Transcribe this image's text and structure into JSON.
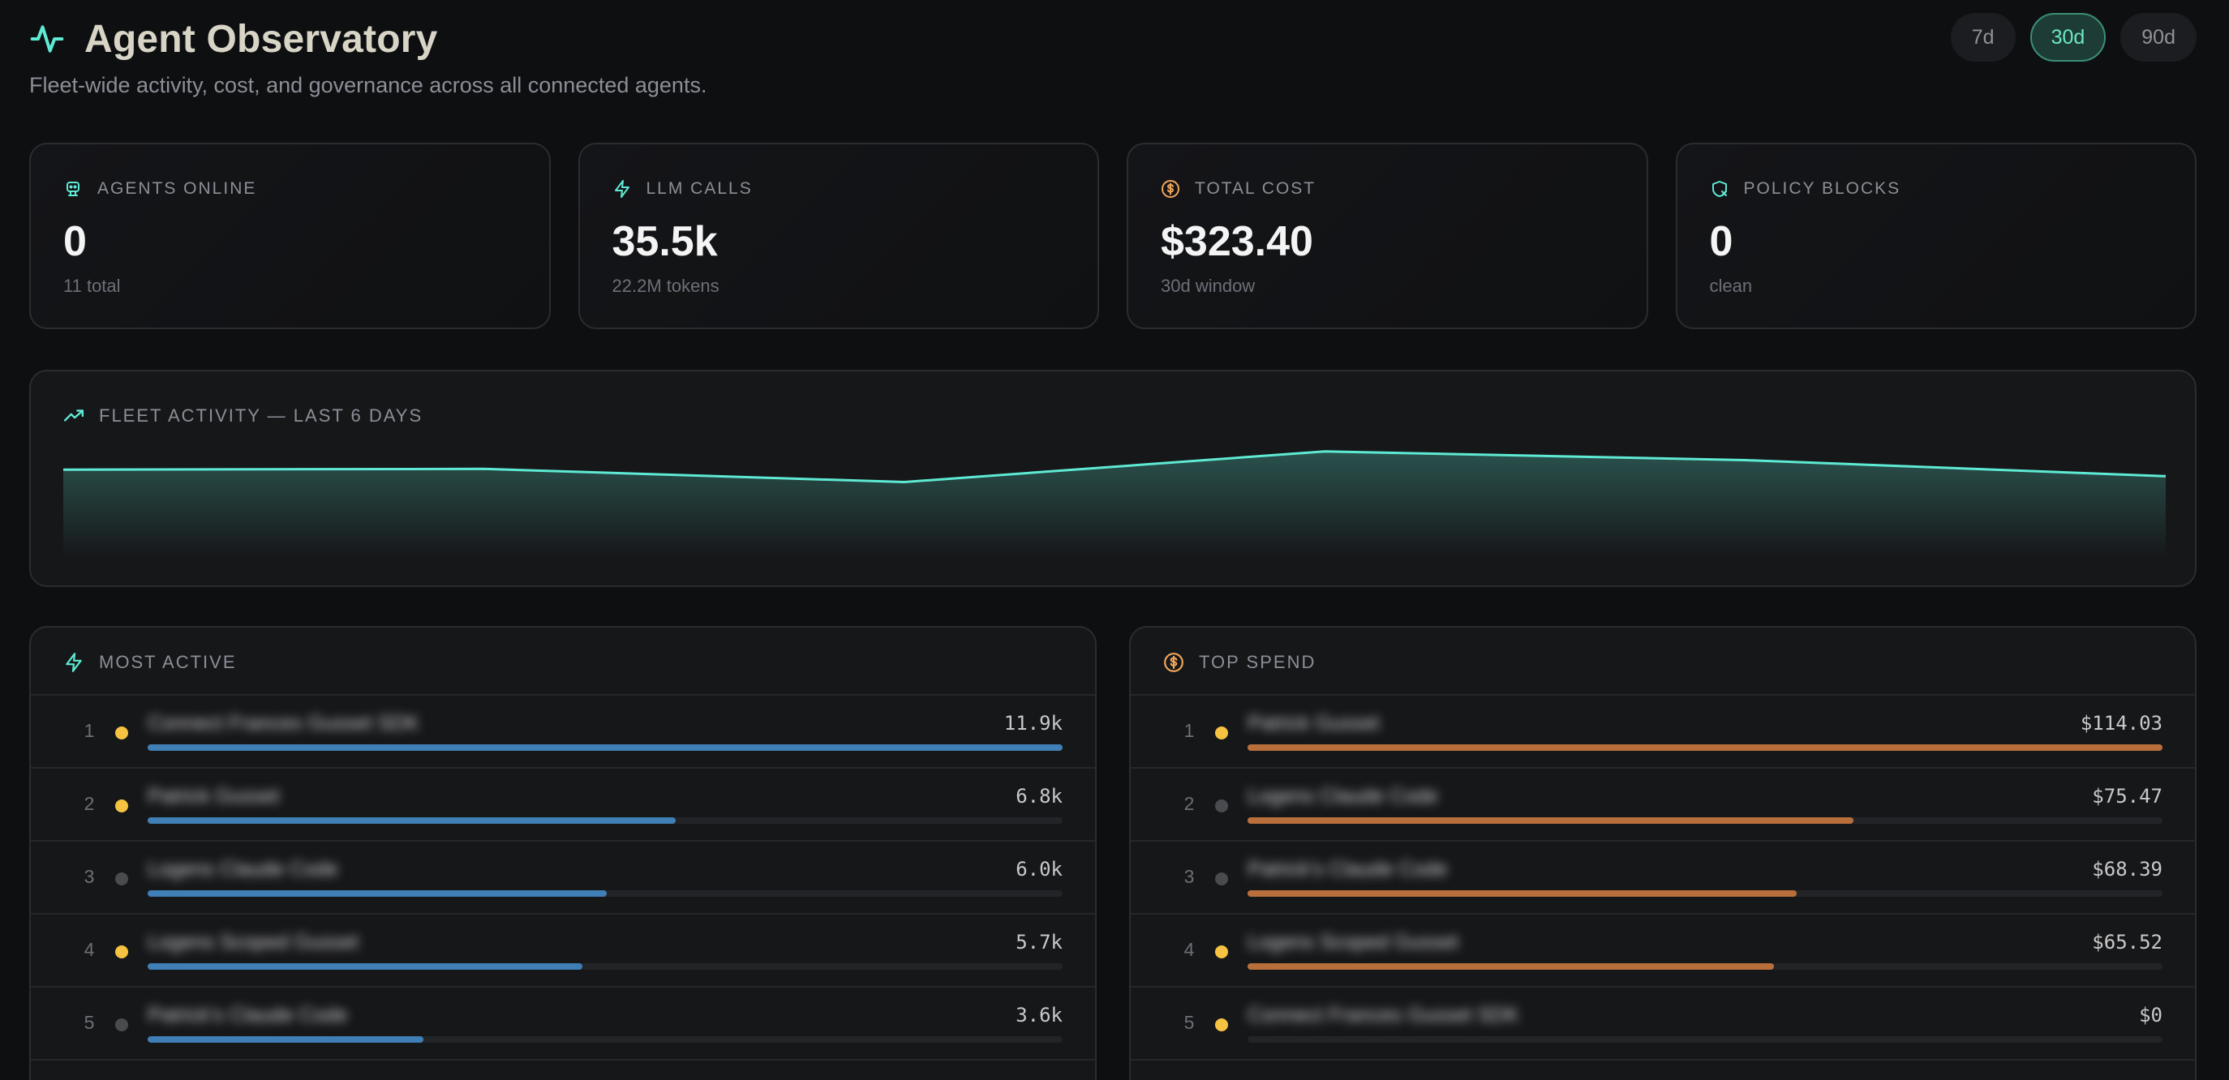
{
  "header": {
    "title": "Agent Observatory",
    "subtitle": "Fleet-wide activity, cost, and governance across all connected agents.",
    "ranges": [
      {
        "label": "7d",
        "active": false
      },
      {
        "label": "30d",
        "active": true
      },
      {
        "label": "90d",
        "active": false
      }
    ]
  },
  "stats": [
    {
      "label": "AGENTS ONLINE",
      "value": "0",
      "sub": "11 total",
      "icon": "agent-icon",
      "color": "#5eead4"
    },
    {
      "label": "LLM CALLS",
      "value": "35.5k",
      "sub": "22.2M tokens",
      "icon": "bolt-icon",
      "color": "#5eead4"
    },
    {
      "label": "TOTAL COST",
      "value": "$323.40",
      "sub": "30d window",
      "icon": "dollar-icon",
      "color": "#f2a65a"
    },
    {
      "label": "POLICY BLOCKS",
      "value": "0",
      "sub": "clean",
      "icon": "shield-x-icon",
      "color": "#5eead4"
    }
  ],
  "activity": {
    "label": "FLEET ACTIVITY — LAST 6 DAYS",
    "icon": "trending-up-icon",
    "line_color": "#5eead4",
    "points": [
      0.72,
      0.73,
      0.55,
      0.97,
      0.85,
      0.63
    ]
  },
  "most_active": {
    "label": "MOST ACTIVE",
    "icon": "bolt-icon",
    "bar_color": "#3f7fb5",
    "rows": [
      {
        "rank": "1",
        "name": "Connect Frances Gusset SDK",
        "value": "11.9k",
        "fraction": 1.0,
        "dot": "#f5c242"
      },
      {
        "rank": "2",
        "name": "Patrick Gusset",
        "value": "6.8k",
        "fraction": 0.577,
        "dot": "#f5c242"
      },
      {
        "rank": "3",
        "name": "Logens Claude Code",
        "value": "6.0k",
        "fraction": 0.502,
        "dot": "#4a4b4f"
      },
      {
        "rank": "4",
        "name": "Logens Scoped Gusset",
        "value": "5.7k",
        "fraction": 0.475,
        "dot": "#f5c242"
      },
      {
        "rank": "5",
        "name": "Patrick's Claude Code",
        "value": "3.6k",
        "fraction": 0.301,
        "dot": "#4a4b4f"
      }
    ]
  },
  "top_spend": {
    "label": "TOP SPEND",
    "icon": "dollar-icon",
    "bar_color": "#b86f3c",
    "rows": [
      {
        "rank": "1",
        "name": "Patrick Gusset",
        "value": "$114.03",
        "fraction": 1.0,
        "dot": "#f5c242"
      },
      {
        "rank": "2",
        "name": "Logens Claude Code",
        "value": "$75.47",
        "fraction": 0.662,
        "dot": "#4a4b4f"
      },
      {
        "rank": "3",
        "name": "Patrick's Claude Code",
        "value": "$68.39",
        "fraction": 0.6,
        "dot": "#4a4b4f"
      },
      {
        "rank": "4",
        "name": "Logens Scoped Gusset",
        "value": "$65.52",
        "fraction": 0.575,
        "dot": "#f5c242"
      },
      {
        "rank": "5",
        "name": "Connect Frances Gusset SDK",
        "value": "$0",
        "fraction": 0.0,
        "dot": "#f5c242"
      }
    ]
  }
}
